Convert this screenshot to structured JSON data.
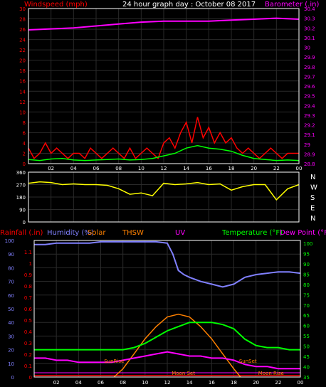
{
  "title": "24 hour graph day : October 08 2017",
  "chart_data": [
    {
      "type": "line",
      "panel": "wind-barometer",
      "series": [
        {
          "name": "Windspeed (mph)",
          "color": "#ff0000"
        },
        {
          "name": "Barometer (.in)",
          "color": "#ff00ff"
        }
      ],
      "left_label": "Windspeed (mph)",
      "right_label": "Barometer (.in)",
      "left_ticks": [
        "30",
        "28",
        "26",
        "24",
        "22",
        "20",
        "18",
        "16",
        "14",
        "12",
        "10",
        "8",
        "6",
        "4",
        "2",
        "0"
      ],
      "right_ticks": [
        "30.4",
        "30.3",
        "30.2",
        "30.1",
        "30",
        "29.9",
        "29.8",
        "29.7",
        "29.6",
        "29.5",
        "29.4",
        "29.3",
        "29.2",
        "29.1",
        "29",
        "28.9",
        "28.8"
      ],
      "x_ticks": [
        "02",
        "04",
        "06",
        "08",
        "10",
        "12",
        "14",
        "16",
        "18",
        "20",
        "22",
        "00"
      ],
      "ylim_left": [
        0,
        30
      ],
      "ylim_right": [
        28.8,
        30.4
      ],
      "barometer": {
        "x": [
          0,
          2,
          4,
          6,
          8,
          10,
          12,
          14,
          16,
          18,
          20,
          22,
          24
        ],
        "y": [
          30.18,
          30.19,
          30.2,
          30.22,
          30.24,
          30.26,
          30.27,
          30.27,
          30.27,
          30.28,
          30.29,
          30.3,
          30.29
        ]
      },
      "wind_gust": {
        "x": [
          0,
          0.5,
          1,
          1.5,
          2,
          2.5,
          3,
          3.5,
          4,
          4.5,
          5,
          5.5,
          6,
          6.5,
          7,
          7.5,
          8,
          8.5,
          9,
          9.5,
          10,
          10.5,
          11,
          11.5,
          12,
          12.5,
          13,
          13.5,
          14,
          14.5,
          15,
          15.5,
          16,
          16.5,
          17,
          17.5,
          18,
          18.5,
          19,
          19.5,
          20,
          20.5,
          21,
          21.5,
          22,
          22.5,
          23,
          23.5,
          24
        ],
        "y": [
          3,
          1,
          2,
          4,
          2,
          3,
          2,
          1,
          2,
          2,
          1,
          3,
          2,
          1,
          2,
          3,
          2,
          1,
          3,
          1,
          2,
          3,
          2,
          1,
          4,
          5,
          3,
          6,
          8,
          4,
          9,
          5,
          7,
          4,
          6,
          4,
          5,
          3,
          2,
          3,
          2,
          1,
          2,
          3,
          2,
          1,
          2,
          2,
          2
        ]
      },
      "wind_avg": {
        "x": [
          0,
          1,
          2,
          3,
          4,
          5,
          6,
          7,
          8,
          9,
          10,
          11,
          12,
          13,
          14,
          15,
          16,
          17,
          18,
          19,
          20,
          21,
          22,
          23,
          24
        ],
        "y": [
          0.8,
          0.6,
          0.9,
          1,
          0.7,
          0.6,
          0.7,
          0.8,
          0.9,
          0.7,
          0.8,
          1,
          1.5,
          2,
          3,
          3.5,
          3,
          2.8,
          2.4,
          1.6,
          1,
          0.8,
          0.6,
          0.7,
          0.6
        ]
      }
    },
    {
      "type": "line",
      "panel": "wind-direction",
      "series": [
        {
          "name": "",
          "color": "#ffff00"
        }
      ],
      "left_ticks": [
        "360",
        "270",
        "180",
        "90",
        "0"
      ],
      "right_ticks": [
        "N",
        "W",
        "S",
        "E",
        "N"
      ],
      "ylim": [
        0,
        360
      ],
      "direction": {
        "x": [
          0,
          1,
          2,
          3,
          4,
          5,
          6,
          7,
          8,
          9,
          10,
          11,
          12,
          13,
          14,
          15,
          16,
          17,
          18,
          19,
          20,
          21,
          22,
          23,
          24
        ],
        "y": [
          280,
          290,
          285,
          270,
          275,
          270,
          270,
          265,
          240,
          200,
          210,
          190,
          280,
          270,
          275,
          285,
          270,
          275,
          230,
          255,
          270,
          270,
          160,
          240,
          270
        ]
      }
    },
    {
      "type": "line",
      "panel": "humidity-temperature",
      "series": [
        {
          "name": "Rainfall (.in)",
          "color": "#ff0000"
        },
        {
          "name": "Humidity (%)",
          "color": "#8080ff"
        },
        {
          "name": "Solar",
          "color": "#ff8000"
        },
        {
          "name": "THSW",
          "color": "#ff8000"
        },
        {
          "name": "UV",
          "color": "#ff00ff"
        },
        {
          "name": "Temperature (°F)",
          "color": "#00ff00"
        },
        {
          "name": "Dew Point (°F)",
          "color": "#ff00ff"
        }
      ],
      "legend_labels": [
        "Rainfall (.in)",
        "Humidity (%)",
        "Solar",
        "THSW",
        "UV",
        "Temperature (°F)",
        "Dew Point (°F)"
      ],
      "rain_ticks": [
        "1.1",
        "1",
        "0.9",
        "0.8",
        "0.7",
        "0.6",
        "0.5",
        "0.4",
        "0.3",
        "0.2",
        "0.1",
        "0"
      ],
      "humidity_ticks": [
        "100",
        "90",
        "80",
        "70",
        "60",
        "50",
        "40",
        "30",
        "20",
        "10",
        "0"
      ],
      "temp_ticks": [
        "100",
        "95",
        "90",
        "85",
        "80",
        "75",
        "70",
        "65",
        "60",
        "55",
        "50",
        "45",
        "40",
        "35"
      ],
      "x_ticks": [
        "02",
        "04",
        "06",
        "08",
        "10",
        "12",
        "14",
        "16",
        "18",
        "20",
        "22",
        "00"
      ],
      "annotations": [
        "SunRise",
        "SunSet",
        "Moon Set",
        "Moon Rise"
      ],
      "humidity": {
        "x": [
          0,
          1,
          2,
          3,
          4,
          5,
          6,
          7,
          8,
          9,
          10,
          11,
          12,
          12.5,
          13,
          13.5,
          14,
          15,
          16,
          17,
          18,
          19,
          20,
          21,
          22,
          23,
          24
        ],
        "y": [
          97,
          97,
          98,
          98,
          98,
          98,
          99,
          99,
          99,
          99,
          99,
          99,
          98,
          90,
          78,
          75,
          73,
          70,
          68,
          66,
          68,
          73,
          75,
          76,
          77,
          77,
          76
        ]
      },
      "temperature": {
        "x": [
          0,
          1,
          2,
          3,
          4,
          5,
          6,
          7,
          8,
          9,
          10,
          11,
          12,
          13,
          14,
          15,
          16,
          17,
          18,
          19,
          20,
          21,
          22,
          23,
          24
        ],
        "y": [
          48,
          48,
          48,
          48,
          48,
          48,
          48,
          48,
          48,
          49,
          51,
          54,
          57,
          59,
          61,
          61,
          61,
          60,
          58,
          53,
          50,
          49,
          49,
          48,
          48
        ]
      },
      "dewpoint": {
        "x": [
          0,
          1,
          2,
          3,
          4,
          5,
          6,
          7,
          8,
          9,
          10,
          11,
          12,
          13,
          14,
          15,
          16,
          17,
          18,
          19,
          20,
          21,
          22,
          23,
          24
        ],
        "y": [
          44,
          44,
          43,
          43,
          42,
          42,
          42,
          42,
          43,
          44,
          45,
          46,
          47,
          46,
          45,
          45,
          44,
          44,
          43,
          41,
          40,
          40,
          39,
          39,
          39
        ]
      },
      "solar": {
        "x": [
          7.2,
          8,
          9,
          10,
          11,
          12,
          13,
          14,
          15,
          16,
          17,
          18,
          18.6
        ],
        "y": [
          0,
          6,
          17,
          28,
          37,
          44,
          46,
          44,
          37,
          28,
          17,
          6,
          0
        ]
      }
    }
  ]
}
